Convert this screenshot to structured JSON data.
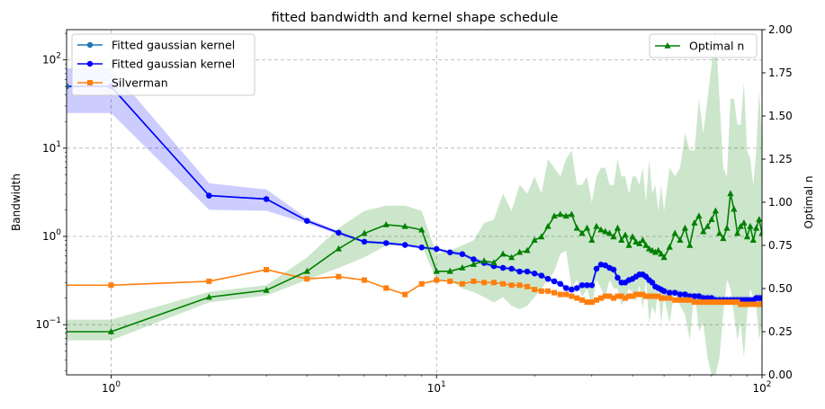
{
  "chart_data": {
    "type": "line",
    "title": "fitted bandwidth and kernel shape schedule",
    "xlabel": "",
    "ylabel": "Bandwidth",
    "y2label": "Optimal n",
    "xscale": "log",
    "yscale": "log",
    "xlim": [
      0.73,
      100
    ],
    "ylim": [
      0.027,
      220
    ],
    "y2lim": [
      0,
      2
    ],
    "grid": true,
    "x_ticks": [
      {
        "v": 1,
        "base": "10",
        "exp": "0"
      },
      {
        "v": 10,
        "base": "10",
        "exp": "1"
      },
      {
        "v": 100,
        "base": "10",
        "exp": "2"
      }
    ],
    "y_ticks": [
      {
        "v": 0.1,
        "base": "10",
        "exp": "−1"
      },
      {
        "v": 1,
        "base": "10",
        "exp": "0"
      },
      {
        "v": 10,
        "base": "10",
        "exp": "1"
      },
      {
        "v": 100,
        "base": "10",
        "exp": "2"
      }
    ],
    "y2_ticks": [
      "0.00",
      "0.25",
      "0.50",
      "0.75",
      "1.00",
      "1.25",
      "1.50",
      "1.75",
      "2.00"
    ],
    "legend_left_placement": "upper-left",
    "legend_right_placement": "upper-right",
    "colors": {
      "gaussian_light": "#1f77b4",
      "gaussian": "#0000ff",
      "gaussian_band": "#0000ff",
      "silverman": "#ff7f0e",
      "optimal": "#008000",
      "optimal_band": "#008000"
    },
    "series": [
      {
        "name": "Fitted gaussian kernel",
        "marker": "circle",
        "axis": "left",
        "color_key": "gaussian_light",
        "x": [
          0.73,
          1,
          2,
          3,
          4,
          5,
          6,
          7,
          8,
          9,
          10,
          11,
          12,
          13,
          14,
          15,
          16,
          17,
          18,
          19,
          20,
          21,
          22,
          23,
          24,
          25,
          26,
          27,
          28,
          29,
          30,
          31,
          32,
          33,
          34,
          35,
          36,
          37,
          38,
          39,
          40,
          41,
          42,
          43,
          44,
          45,
          46,
          47,
          48,
          49,
          50,
          52,
          54,
          56,
          58,
          60,
          62,
          64,
          66,
          68,
          70,
          72,
          74,
          76,
          78,
          80,
          82,
          84,
          86,
          88,
          90,
          92,
          94,
          96,
          98,
          100
        ],
        "y": [
          50,
          50,
          2.9,
          2.65,
          1.5,
          1.1,
          0.87,
          0.84,
          0.8,
          0.75,
          0.72,
          0.66,
          0.63,
          0.55,
          0.5,
          0.46,
          0.44,
          0.43,
          0.4,
          0.4,
          0.38,
          0.36,
          0.33,
          0.31,
          0.29,
          0.26,
          0.25,
          0.26,
          0.28,
          0.28,
          0.28,
          0.43,
          0.48,
          0.47,
          0.44,
          0.42,
          0.34,
          0.3,
          0.3,
          0.32,
          0.33,
          0.35,
          0.37,
          0.37,
          0.35,
          0.32,
          0.3,
          0.27,
          0.26,
          0.25,
          0.24,
          0.23,
          0.23,
          0.22,
          0.22,
          0.21,
          0.21,
          0.21,
          0.2,
          0.2,
          0.2,
          0.19,
          0.19,
          0.19,
          0.19,
          0.19,
          0.19,
          0.19,
          0.19,
          0.19,
          0.19,
          0.19,
          0.19,
          0.2,
          0.2,
          0.2
        ]
      },
      {
        "name": "Fitted gaussian kernel",
        "marker": "circle",
        "axis": "left",
        "color_key": "gaussian",
        "x": [
          0.73,
          1,
          2,
          3,
          4,
          5,
          6,
          7,
          8,
          9,
          10,
          11,
          12,
          13,
          14,
          15,
          16,
          17,
          18,
          19,
          20,
          21,
          22,
          23,
          24,
          25,
          26,
          27,
          28,
          29,
          30,
          31,
          32,
          33,
          34,
          35,
          36,
          37,
          38,
          39,
          40,
          41,
          42,
          43,
          44,
          45,
          46,
          47,
          48,
          49,
          50,
          52,
          54,
          56,
          58,
          60,
          62,
          64,
          66,
          68,
          70,
          72,
          74,
          76,
          78,
          80,
          82,
          84,
          86,
          88,
          90,
          92,
          94,
          96,
          98,
          100
        ],
        "y": [
          50,
          50,
          2.9,
          2.65,
          1.5,
          1.1,
          0.87,
          0.84,
          0.8,
          0.75,
          0.72,
          0.66,
          0.63,
          0.55,
          0.5,
          0.46,
          0.44,
          0.43,
          0.4,
          0.4,
          0.38,
          0.36,
          0.33,
          0.31,
          0.29,
          0.26,
          0.25,
          0.26,
          0.28,
          0.28,
          0.28,
          0.43,
          0.48,
          0.47,
          0.44,
          0.42,
          0.34,
          0.3,
          0.3,
          0.32,
          0.33,
          0.35,
          0.37,
          0.37,
          0.35,
          0.32,
          0.3,
          0.27,
          0.26,
          0.25,
          0.24,
          0.23,
          0.23,
          0.22,
          0.22,
          0.21,
          0.21,
          0.21,
          0.2,
          0.2,
          0.2,
          0.19,
          0.19,
          0.19,
          0.19,
          0.19,
          0.19,
          0.19,
          0.19,
          0.19,
          0.19,
          0.19,
          0.19,
          0.2,
          0.2,
          0.2
        ],
        "band_lower": [
          25,
          25,
          2.0,
          1.95,
          1.4,
          1.05,
          0.84,
          0.81,
          0.77,
          0.72,
          0.69,
          0.63,
          0.6,
          0.52,
          0.47,
          0.44,
          0.42,
          0.41,
          0.38,
          0.38,
          0.36,
          0.34,
          0.31,
          0.29,
          0.27,
          0.24,
          0.23,
          0.24,
          0.26,
          0.26,
          0.26,
          0.4,
          0.45,
          0.44,
          0.41,
          0.39,
          0.31,
          0.28,
          0.28,
          0.3,
          0.31,
          0.33,
          0.34,
          0.34,
          0.32,
          0.3,
          0.28,
          0.25,
          0.24,
          0.23,
          0.22,
          0.21,
          0.21,
          0.2,
          0.2,
          0.19,
          0.19,
          0.19,
          0.18,
          0.18,
          0.18,
          0.17,
          0.17,
          0.17,
          0.17,
          0.17,
          0.17,
          0.17,
          0.17,
          0.17,
          0.17,
          0.17,
          0.17,
          0.18,
          0.18,
          0.18
        ],
        "band_upper": [
          80,
          80,
          4.0,
          3.4,
          1.6,
          1.15,
          0.9,
          0.87,
          0.83,
          0.78,
          0.75,
          0.69,
          0.66,
          0.58,
          0.53,
          0.48,
          0.46,
          0.45,
          0.42,
          0.42,
          0.4,
          0.38,
          0.35,
          0.33,
          0.31,
          0.28,
          0.27,
          0.28,
          0.3,
          0.3,
          0.3,
          0.46,
          0.51,
          0.5,
          0.47,
          0.45,
          0.37,
          0.32,
          0.32,
          0.34,
          0.35,
          0.37,
          0.4,
          0.4,
          0.38,
          0.34,
          0.32,
          0.29,
          0.28,
          0.27,
          0.26,
          0.25,
          0.25,
          0.24,
          0.24,
          0.23,
          0.23,
          0.23,
          0.22,
          0.22,
          0.22,
          0.21,
          0.21,
          0.21,
          0.21,
          0.21,
          0.21,
          0.21,
          0.21,
          0.21,
          0.21,
          0.21,
          0.21,
          0.22,
          0.22,
          0.22
        ]
      },
      {
        "name": "Silverman",
        "marker": "square",
        "axis": "left",
        "color_key": "silverman",
        "x": [
          0.73,
          1,
          2,
          3,
          4,
          5,
          6,
          7,
          8,
          9,
          10,
          11,
          12,
          13,
          14,
          15,
          16,
          17,
          18,
          19,
          20,
          21,
          22,
          23,
          24,
          25,
          26,
          27,
          28,
          29,
          30,
          31,
          32,
          33,
          34,
          35,
          36,
          37,
          38,
          39,
          40,
          41,
          42,
          43,
          44,
          45,
          46,
          47,
          48,
          49,
          50,
          52,
          54,
          56,
          58,
          60,
          62,
          64,
          66,
          68,
          70,
          72,
          74,
          76,
          78,
          80,
          82,
          84,
          86,
          88,
          90,
          92,
          94,
          96,
          98,
          100
        ],
        "y": [
          0.28,
          0.28,
          0.31,
          0.42,
          0.33,
          0.35,
          0.32,
          0.26,
          0.22,
          0.29,
          0.32,
          0.31,
          0.29,
          0.31,
          0.3,
          0.3,
          0.29,
          0.28,
          0.28,
          0.27,
          0.25,
          0.24,
          0.24,
          0.23,
          0.22,
          0.22,
          0.21,
          0.2,
          0.19,
          0.18,
          0.18,
          0.19,
          0.2,
          0.21,
          0.21,
          0.2,
          0.21,
          0.21,
          0.2,
          0.21,
          0.21,
          0.22,
          0.22,
          0.22,
          0.21,
          0.21,
          0.21,
          0.21,
          0.21,
          0.2,
          0.2,
          0.2,
          0.19,
          0.19,
          0.19,
          0.19,
          0.18,
          0.18,
          0.18,
          0.18,
          0.18,
          0.18,
          0.18,
          0.18,
          0.18,
          0.18,
          0.18,
          0.18,
          0.17,
          0.17,
          0.17,
          0.17,
          0.17,
          0.17,
          0.17,
          0.17
        ]
      },
      {
        "name": "Optimal n",
        "marker": "triangle",
        "axis": "right",
        "color_key": "optimal",
        "x": [
          0.73,
          1,
          2,
          3,
          4,
          5,
          6,
          7,
          8,
          9,
          10,
          11,
          12,
          13,
          14,
          15,
          16,
          17,
          18,
          19,
          20,
          21,
          22,
          23,
          24,
          25,
          26,
          27,
          28,
          29,
          30,
          31,
          32,
          33,
          34,
          35,
          36,
          37,
          38,
          39,
          40,
          41,
          42,
          43,
          44,
          45,
          46,
          47,
          48,
          49,
          50,
          52,
          54,
          56,
          58,
          60,
          62,
          64,
          66,
          68,
          70,
          72,
          74,
          76,
          78,
          80,
          82,
          84,
          86,
          88,
          90,
          92,
          94,
          96,
          98,
          100
        ],
        "y": [
          0.25,
          0.25,
          0.45,
          0.49,
          0.6,
          0.73,
          0.82,
          0.87,
          0.86,
          0.84,
          0.6,
          0.6,
          0.62,
          0.64,
          0.66,
          0.65,
          0.7,
          0.68,
          0.71,
          0.72,
          0.78,
          0.8,
          0.86,
          0.92,
          0.93,
          0.92,
          0.93,
          0.85,
          0.82,
          0.85,
          0.78,
          0.86,
          0.84,
          0.83,
          0.82,
          0.8,
          0.85,
          0.78,
          0.81,
          0.75,
          0.8,
          0.77,
          0.76,
          0.78,
          0.75,
          0.73,
          0.72,
          0.71,
          0.72,
          0.7,
          0.68,
          0.74,
          0.82,
          0.78,
          0.85,
          0.75,
          0.88,
          0.92,
          0.83,
          0.86,
          0.9,
          0.95,
          0.82,
          0.79,
          0.85,
          1.05,
          0.96,
          0.82,
          0.86,
          0.88,
          0.8,
          0.86,
          0.78,
          0.85,
          0.9,
          0.82
        ],
        "band_lower": [
          0.2,
          0.2,
          0.42,
          0.46,
          0.55,
          0.62,
          0.68,
          0.75,
          0.75,
          0.75,
          0.55,
          0.55,
          0.5,
          0.48,
          0.45,
          0.42,
          0.45,
          0.4,
          0.38,
          0.4,
          0.45,
          0.5,
          0.55,
          0.6,
          0.7,
          0.72,
          0.5,
          0.55,
          0.45,
          0.5,
          0.4,
          0.55,
          0.5,
          0.45,
          0.55,
          0.5,
          0.5,
          0.4,
          0.45,
          0.5,
          0.48,
          0.42,
          0.52,
          0.38,
          0.55,
          0.3,
          0.4,
          0.35,
          0.5,
          0.3,
          0.45,
          0.3,
          0.5,
          0.4,
          0.35,
          0.2,
          0.5,
          0.25,
          0.3,
          0.1,
          0.0,
          0.0,
          0.1,
          0.35,
          0.55,
          0.5,
          0.35,
          0.2,
          0.3,
          0.1,
          0.35,
          0.5,
          0.45,
          0.4,
          0.2,
          0.3
        ],
        "band_upper": [
          0.32,
          0.32,
          0.48,
          0.52,
          0.68,
          0.85,
          0.95,
          0.98,
          0.98,
          0.95,
          0.7,
          0.72,
          0.75,
          0.78,
          0.88,
          0.9,
          1.05,
          0.95,
          1.1,
          1.05,
          1.15,
          1.05,
          1.25,
          1.2,
          1.15,
          1.25,
          1.3,
          1.1,
          1.1,
          1.15,
          1.0,
          1.15,
          1.2,
          1.2,
          1.1,
          1.1,
          1.25,
          1.15,
          1.15,
          1.05,
          1.15,
          1.15,
          1.1,
          1.2,
          1.0,
          1.25,
          1.05,
          1.1,
          0.95,
          1.1,
          0.95,
          1.2,
          1.15,
          1.2,
          1.4,
          1.3,
          1.3,
          1.6,
          1.4,
          1.6,
          1.8,
          2.0,
          1.6,
          1.2,
          1.15,
          1.6,
          1.6,
          1.45,
          1.45,
          1.7,
          1.3,
          1.25,
          1.1,
          1.3,
          1.65,
          1.35
        ]
      }
    ]
  }
}
